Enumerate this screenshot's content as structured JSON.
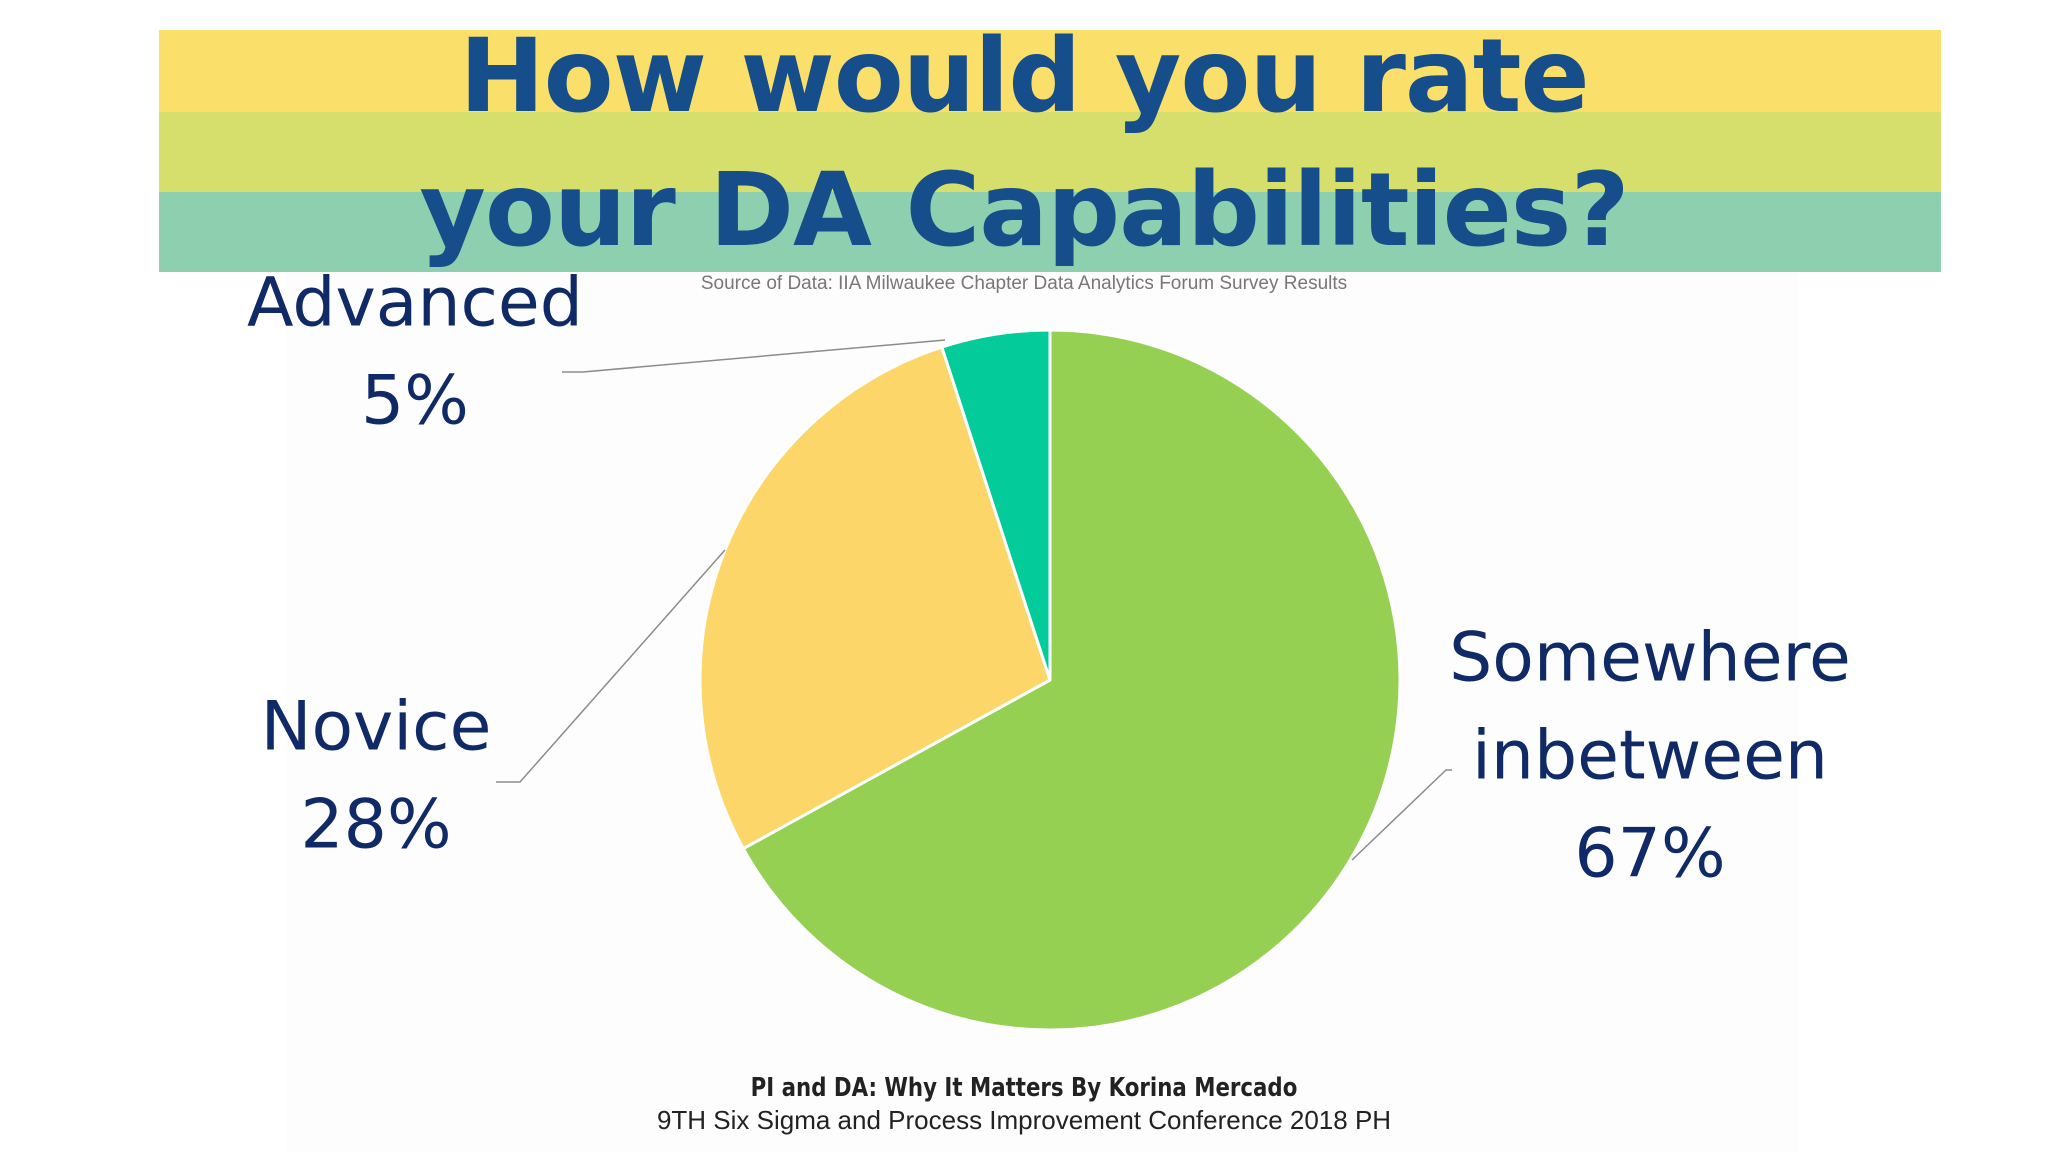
{
  "colors": {
    "banner_top": "#fbdf6b",
    "banner_mid": "#d7df6c",
    "banner_bottom": "#8ecfaf",
    "title": "#154e8a",
    "label_text": "#0f2a66",
    "leader_line": "#8c8c8c",
    "slice_border": "#ffffff"
  },
  "header": {
    "title_line_1": "How would you rate",
    "title_line_2": "your DA Capabilities?",
    "source": "Source of Data: IIA Milwaukee Chapter Data Analytics Forum Survey Results"
  },
  "footer": {
    "line_1": "PI and DA: Why It Matters By Korina Mercado",
    "line_2": "9TH Six Sigma and Process Improvement Conference 2018 PH"
  },
  "chart_data": {
    "type": "pie",
    "title": "How would you rate your DA Capabilities?",
    "slices": [
      {
        "label_lines": [
          "Somewhere",
          "inbetween"
        ],
        "percent_label": "67%",
        "value": 67,
        "color": "#95d052"
      },
      {
        "label_lines": [
          "Novice"
        ],
        "percent_label": "28%",
        "value": 28,
        "color": "#fcd668"
      },
      {
        "label_lines": [
          "Advanced"
        ],
        "percent_label": "5%",
        "value": 5,
        "color": "#03cb99"
      }
    ]
  }
}
